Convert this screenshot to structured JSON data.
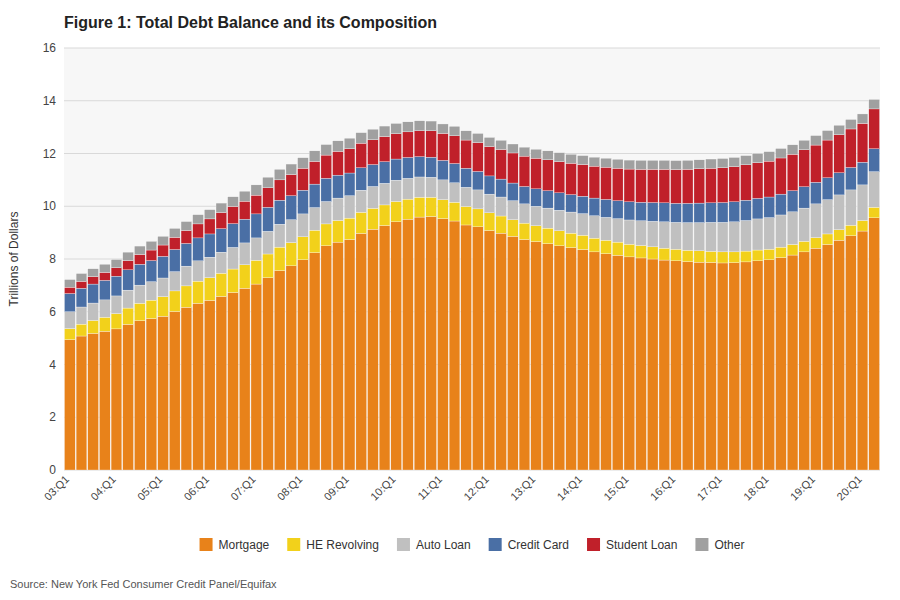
{
  "chart_data": {
    "type": "bar",
    "title": "Figure 1: Total Debt Balance and its Composition",
    "y_label": "Trillions of Dollars",
    "annotations": [
      "Source: New York Fed Consumer Credit Panel/Equifax"
    ],
    "stacked": true,
    "grid": true,
    "legend": "bottom",
    "ylim": [
      0,
      16
    ],
    "yticks": [
      0,
      2,
      4,
      6,
      8,
      10,
      12,
      14,
      16
    ],
    "categories": [
      "03:Q1",
      null,
      null,
      null,
      "04:Q1",
      null,
      null,
      null,
      "05:Q1",
      null,
      null,
      null,
      "06:Q1",
      null,
      null,
      null,
      "07:Q1",
      null,
      null,
      null,
      "08:Q1",
      null,
      null,
      null,
      "09:Q1",
      null,
      null,
      null,
      "10:Q1",
      null,
      null,
      null,
      "11:Q1",
      null,
      null,
      null,
      "12:Q1",
      null,
      null,
      null,
      "13:Q1",
      null,
      null,
      null,
      "14:Q1",
      null,
      null,
      null,
      "15:Q1",
      null,
      null,
      null,
      "16:Q1",
      null,
      null,
      null,
      "17:Q1",
      null,
      null,
      null,
      "18:Q1",
      null,
      null,
      null,
      "19:Q1",
      null,
      null,
      null,
      "20:Q1",
      null
    ],
    "series": [
      {
        "name": "Mortgage",
        "color": "#E8821A",
        "values": [
          4.94,
          5.08,
          5.18,
          5.26,
          5.35,
          5.52,
          5.66,
          5.74,
          5.83,
          6.01,
          6.17,
          6.32,
          6.43,
          6.58,
          6.73,
          6.89,
          7.05,
          7.29,
          7.56,
          7.74,
          7.97,
          8.24,
          8.5,
          8.64,
          8.74,
          8.97,
          9.13,
          9.27,
          9.41,
          9.51,
          9.59,
          9.61,
          9.53,
          9.44,
          9.29,
          9.22,
          9.08,
          8.98,
          8.86,
          8.74,
          8.66,
          8.58,
          8.5,
          8.43,
          8.36,
          8.27,
          8.2,
          8.14,
          8.08,
          8.04,
          8.0,
          7.96,
          7.93,
          7.9,
          7.88,
          7.87,
          7.85,
          7.86,
          7.89,
          7.93,
          7.97,
          8.05,
          8.15,
          8.27,
          8.41,
          8.55,
          8.71,
          8.88,
          9.06,
          9.56
        ]
      },
      {
        "name": "HE Revolving",
        "color": "#F2D11B",
        "values": [
          0.42,
          0.45,
          0.49,
          0.53,
          0.58,
          0.62,
          0.66,
          0.7,
          0.74,
          0.78,
          0.81,
          0.84,
          0.86,
          0.88,
          0.89,
          0.89,
          0.9,
          0.9,
          0.89,
          0.88,
          0.87,
          0.85,
          0.83,
          0.82,
          0.81,
          0.8,
          0.79,
          0.78,
          0.77,
          0.76,
          0.75,
          0.73,
          0.72,
          0.71,
          0.7,
          0.68,
          0.67,
          0.65,
          0.63,
          0.62,
          0.6,
          0.59,
          0.57,
          0.55,
          0.54,
          0.52,
          0.51,
          0.5,
          0.48,
          0.47,
          0.46,
          0.45,
          0.44,
          0.43,
          0.43,
          0.42,
          0.42,
          0.41,
          0.41,
          0.41,
          0.4,
          0.4,
          0.4,
          0.4,
          0.4,
          0.4,
          0.4,
          0.4,
          0.4,
          0.4
        ]
      },
      {
        "name": "Auto Loan",
        "color": "#C0C0C0",
        "values": [
          0.64,
          0.65,
          0.66,
          0.66,
          0.67,
          0.68,
          0.69,
          0.7,
          0.71,
          0.73,
          0.75,
          0.77,
          0.78,
          0.8,
          0.82,
          0.83,
          0.85,
          0.86,
          0.87,
          0.87,
          0.87,
          0.86,
          0.85,
          0.85,
          0.85,
          0.84,
          0.83,
          0.82,
          0.81,
          0.79,
          0.77,
          0.76,
          0.75,
          0.74,
          0.73,
          0.72,
          0.71,
          0.72,
          0.72,
          0.73,
          0.74,
          0.76,
          0.78,
          0.8,
          0.82,
          0.85,
          0.87,
          0.89,
          0.92,
          0.94,
          0.97,
          1.0,
          1.02,
          1.05,
          1.07,
          1.1,
          1.12,
          1.14,
          1.16,
          1.18,
          1.2,
          1.22,
          1.24,
          1.26,
          1.28,
          1.3,
          1.32,
          1.34,
          1.35,
          1.35
        ]
      },
      {
        "name": "Credit Card",
        "color": "#4A6FA5",
        "values": [
          0.69,
          0.71,
          0.72,
          0.74,
          0.75,
          0.77,
          0.79,
          0.8,
          0.82,
          0.84,
          0.86,
          0.87,
          0.88,
          0.89,
          0.9,
          0.9,
          0.91,
          0.91,
          0.91,
          0.91,
          0.9,
          0.89,
          0.88,
          0.87,
          0.86,
          0.85,
          0.83,
          0.82,
          0.8,
          0.79,
          0.77,
          0.76,
          0.74,
          0.73,
          0.72,
          0.7,
          0.69,
          0.68,
          0.67,
          0.66,
          0.66,
          0.66,
          0.66,
          0.66,
          0.66,
          0.67,
          0.68,
          0.68,
          0.69,
          0.7,
          0.71,
          0.72,
          0.72,
          0.73,
          0.74,
          0.74,
          0.75,
          0.76,
          0.77,
          0.78,
          0.78,
          0.79,
          0.8,
          0.81,
          0.82,
          0.83,
          0.84,
          0.85,
          0.86,
          0.87
        ]
      },
      {
        "name": "Student Loan",
        "color": "#C0202A",
        "values": [
          0.24,
          0.26,
          0.28,
          0.3,
          0.32,
          0.35,
          0.37,
          0.4,
          0.43,
          0.46,
          0.49,
          0.53,
          0.57,
          0.61,
          0.65,
          0.68,
          0.71,
          0.74,
          0.77,
          0.8,
          0.83,
          0.86,
          0.88,
          0.9,
          0.92,
          0.93,
          0.94,
          0.95,
          0.96,
          0.97,
          0.98,
          1.0,
          1.02,
          1.05,
          1.07,
          1.09,
          1.11,
          1.12,
          1.14,
          1.15,
          1.16,
          1.17,
          1.18,
          1.19,
          1.2,
          1.21,
          1.22,
          1.23,
          1.24,
          1.25,
          1.26,
          1.27,
          1.28,
          1.29,
          1.3,
          1.31,
          1.32,
          1.33,
          1.34,
          1.35,
          1.36,
          1.37,
          1.38,
          1.4,
          1.41,
          1.43,
          1.44,
          1.46,
          1.47,
          1.51
        ]
      },
      {
        "name": "Other",
        "color": "#A0A0A0",
        "values": [
          0.29,
          0.3,
          0.3,
          0.31,
          0.31,
          0.32,
          0.32,
          0.33,
          0.33,
          0.34,
          0.34,
          0.35,
          0.35,
          0.36,
          0.37,
          0.38,
          0.39,
          0.4,
          0.4,
          0.4,
          0.4,
          0.4,
          0.4,
          0.4,
          0.4,
          0.4,
          0.4,
          0.4,
          0.39,
          0.38,
          0.38,
          0.37,
          0.36,
          0.36,
          0.35,
          0.35,
          0.35,
          0.35,
          0.34,
          0.34,
          0.34,
          0.34,
          0.34,
          0.34,
          0.34,
          0.34,
          0.34,
          0.34,
          0.34,
          0.34,
          0.34,
          0.34,
          0.34,
          0.34,
          0.34,
          0.35,
          0.35,
          0.35,
          0.35,
          0.35,
          0.36,
          0.36,
          0.36,
          0.36,
          0.36,
          0.36,
          0.36,
          0.36,
          0.36,
          0.36
        ]
      }
    ]
  }
}
